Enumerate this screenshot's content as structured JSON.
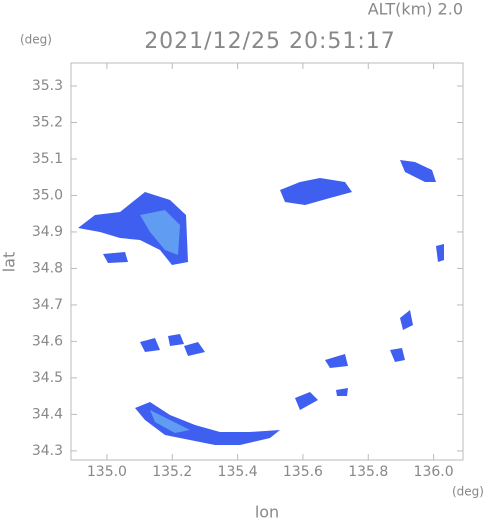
{
  "chart_data": {
    "type": "radar-map",
    "title": "2021/12/25 20:51:17",
    "subtitle": "ALT(km)  2.0",
    "x_label": "lon",
    "y_label": "lat",
    "x_unit": "(deg)",
    "y_unit": "(deg)",
    "xlim": [
      134.89,
      136.09
    ],
    "ylim": [
      34.275,
      35.363
    ],
    "xticks": [
      {
        "value": 135.0,
        "label": "135.0"
      },
      135.2,
      135.4,
      135.6,
      135.8,
      {
        "value": 136.0,
        "label": "136.0"
      }
    ],
    "yticks": [
      35.3,
      35.2,
      35.1,
      {
        "value": 35.0,
        "label": "35.0"
      },
      34.9,
      34.8,
      34.7,
      34.6,
      34.5,
      34.4,
      34.3
    ]
  }
}
